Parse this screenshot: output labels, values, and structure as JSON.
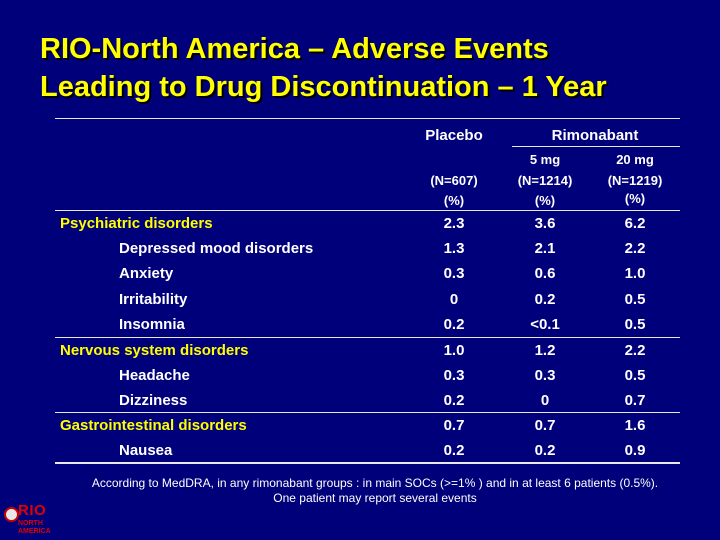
{
  "title": {
    "line1": "RIO-North America – Adverse Events",
    "line2": "Leading to Drug Discontinuation – 1 Year"
  },
  "header": {
    "placebo": "Placebo",
    "rimonabant": "Rimonabant",
    "dose_5": "5 mg",
    "dose_20": "20 mg",
    "n_placebo": "(N=607)",
    "n_5": "(N=1214)",
    "n_20": "(N=1219)",
    "pct_placebo": "(%)",
    "pct_5": "(%)",
    "pct_20": "(%)"
  },
  "rows": [
    {
      "label": "Psychiatric disorders",
      "placebo": "2.3",
      "r5": "3.6",
      "r20": "6.2"
    },
    {
      "label": "Depressed mood disorders",
      "placebo": "1.3",
      "r5": "2.1",
      "r20": "2.2"
    },
    {
      "label": "Anxiety",
      "placebo": "0.3",
      "r5": "0.6",
      "r20": "1.0"
    },
    {
      "label": "Irritability",
      "placebo": "0",
      "r5": "0.2",
      "r20": "0.5"
    },
    {
      "label": "Insomnia",
      "placebo": "0.2",
      "r5": "<0.1",
      "r20": "0.5"
    },
    {
      "label": "Nervous system disorders",
      "placebo": "1.0",
      "r5": "1.2",
      "r20": "2.2"
    },
    {
      "label": "Headache",
      "placebo": "0.3",
      "r5": "0.3",
      "r20": "0.5"
    },
    {
      "label": "Dizziness",
      "placebo": "0.2",
      "r5": "0",
      "r20": "0.7"
    },
    {
      "label": "Gastrointestinal disorders",
      "placebo": "0.7",
      "r5": "0.7",
      "r20": "1.6"
    },
    {
      "label": "Nausea",
      "placebo": "0.2",
      "r5": "0.2",
      "r20": "0.9"
    }
  ],
  "footnote": {
    "line1": "According to MedDRA, in any rimonabant groups  : in main SOCs (>=1% ) and in at least 6 patients (0.5%).",
    "line2": "One patient may report several events"
  },
  "logo": {
    "name": "RIO",
    "subtitle_1": "NORTH",
    "subtitle_2": "AMERICA"
  },
  "colors": {
    "background": "#00007a",
    "title": "#ffff00",
    "category_label": "#ffff00",
    "text": "#ffffff",
    "logo": "#e00000"
  }
}
